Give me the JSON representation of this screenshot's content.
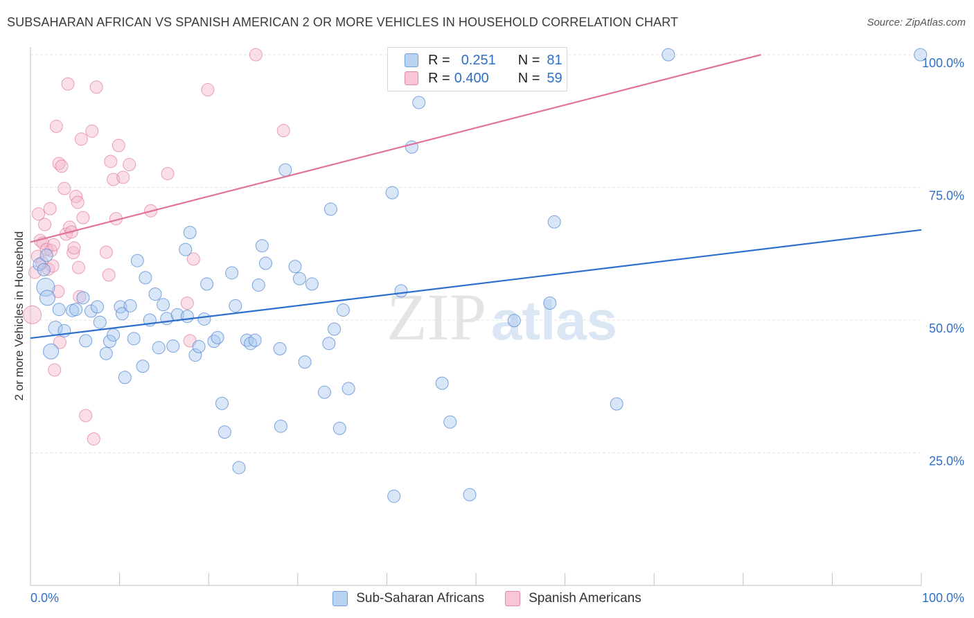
{
  "title": "SUBSAHARAN AFRICAN VS SPANISH AMERICAN 2 OR MORE VEHICLES IN HOUSEHOLD CORRELATION CHART",
  "source": "Source: ZipAtlas.com",
  "watermark": {
    "zip": "ZIP",
    "atlas": "atlas"
  },
  "legend": {
    "rows": [
      {
        "r_label": "R =",
        "r_value": "0.251",
        "n_label": "N =",
        "n_value": "81"
      },
      {
        "r_label": "R =",
        "r_value": "0.400",
        "n_label": "N =",
        "n_value": "59"
      }
    ]
  },
  "bottom_legend": [
    "Sub-Saharan Africans",
    "Spanish Americans"
  ],
  "colors": {
    "blue_fill": "#a9c8ef",
    "blue_stroke": "#5b8fd6",
    "blue_line": "#2e6fcc",
    "pink_fill": "#f5b8cb",
    "pink_stroke": "#e07a9a",
    "pink_line": "#e0729a",
    "grid": "#e3e3e3",
    "tick_text": "#2f6fc4"
  },
  "chart_data": {
    "type": "scatter",
    "xlabel": "",
    "ylabel": "2 or more Vehicles in Household",
    "xlim": [
      0,
      100
    ],
    "ylim": [
      0,
      105
    ],
    "x_ticks": [
      "0.0%",
      "100.0%"
    ],
    "y_ticks": [
      {
        "value": 25,
        "label": "25.0%"
      },
      {
        "value": 50,
        "label": "50.0%"
      },
      {
        "value": 75,
        "label": "75.0%"
      },
      {
        "value": 100,
        "label": "100.0%"
      }
    ],
    "series": [
      {
        "name": "Sub-Saharan Africans",
        "R": 0.251,
        "N": 81,
        "trend": [
          [
            0,
            46.6
          ],
          [
            100,
            67.0
          ]
        ],
        "points": [
          [
            1.0,
            60.5,
            9
          ],
          [
            1.5,
            59.5,
            9
          ],
          [
            1.7,
            56.2,
            13
          ],
          [
            1.8,
            62.2,
            9
          ],
          [
            1.9,
            54.2,
            11
          ],
          [
            2.3,
            44.1,
            11
          ],
          [
            2.8,
            48.5,
            10
          ],
          [
            3.2,
            52.0,
            9
          ],
          [
            3.8,
            48.0,
            9
          ],
          [
            4.7,
            51.8,
            9
          ],
          [
            5.1,
            52.0,
            9
          ],
          [
            5.9,
            54.2,
            9
          ],
          [
            6.2,
            46.1,
            9
          ],
          [
            6.8,
            51.7,
            9
          ],
          [
            7.5,
            52.5,
            9
          ],
          [
            7.8,
            49.6,
            9
          ],
          [
            8.5,
            43.7,
            9
          ],
          [
            8.9,
            46.0,
            9
          ],
          [
            9.3,
            47.2,
            9
          ],
          [
            10.1,
            52.5,
            9
          ],
          [
            10.3,
            51.2,
            9
          ],
          [
            10.6,
            39.2,
            9
          ],
          [
            11.2,
            52.7,
            9
          ],
          [
            11.6,
            46.5,
            9
          ],
          [
            12.0,
            61.2,
            9
          ],
          [
            12.6,
            41.3,
            9
          ],
          [
            12.9,
            58.0,
            9
          ],
          [
            13.4,
            50.0,
            9
          ],
          [
            14.0,
            54.9,
            9
          ],
          [
            14.4,
            44.8,
            9
          ],
          [
            14.9,
            52.9,
            9
          ],
          [
            15.3,
            50.3,
            9
          ],
          [
            16.0,
            45.1,
            9
          ],
          [
            16.5,
            51.0,
            9
          ],
          [
            17.4,
            63.3,
            9
          ],
          [
            17.6,
            50.7,
            9
          ],
          [
            17.9,
            66.5,
            9
          ],
          [
            18.5,
            43.4,
            9
          ],
          [
            18.9,
            45.0,
            9
          ],
          [
            19.5,
            50.2,
            9
          ],
          [
            19.8,
            56.8,
            9
          ],
          [
            20.6,
            46.0,
            9
          ],
          [
            21.0,
            46.7,
            9
          ],
          [
            21.5,
            34.3,
            9
          ],
          [
            21.8,
            28.9,
            9
          ],
          [
            22.6,
            58.9,
            9
          ],
          [
            23.0,
            52.7,
            9
          ],
          [
            23.4,
            22.2,
            9
          ],
          [
            24.3,
            46.2,
            9
          ],
          [
            24.7,
            45.6,
            9
          ],
          [
            25.2,
            46.2,
            9
          ],
          [
            25.6,
            56.6,
            9
          ],
          [
            26.0,
            64.0,
            9
          ],
          [
            26.4,
            60.7,
            9
          ],
          [
            28.0,
            44.6,
            9
          ],
          [
            28.1,
            30.0,
            9
          ],
          [
            28.6,
            78.3,
            9
          ],
          [
            29.7,
            60.1,
            9
          ],
          [
            30.2,
            57.8,
            9
          ],
          [
            30.8,
            42.1,
            9
          ],
          [
            31.6,
            56.8,
            9
          ],
          [
            33.0,
            36.4,
            9
          ],
          [
            33.5,
            45.6,
            9
          ],
          [
            33.7,
            70.9,
            9
          ],
          [
            34.1,
            48.3,
            9
          ],
          [
            34.7,
            29.6,
            9
          ],
          [
            35.1,
            51.9,
            9
          ],
          [
            35.7,
            37.1,
            9
          ],
          [
            40.6,
            74.0,
            9
          ],
          [
            40.8,
            16.8,
            9
          ],
          [
            41.6,
            55.5,
            9
          ],
          [
            42.8,
            82.6,
            9
          ],
          [
            43.6,
            91.0,
            9
          ],
          [
            46.2,
            38.1,
            9
          ],
          [
            47.1,
            30.8,
            9
          ],
          [
            49.3,
            17.1,
            9
          ],
          [
            54.3,
            49.9,
            9
          ],
          [
            58.3,
            53.2,
            9
          ],
          [
            58.8,
            68.5,
            9
          ],
          [
            65.8,
            34.2,
            9
          ],
          [
            71.6,
            100.0,
            9
          ],
          [
            99.9,
            100.0,
            9
          ]
        ]
      },
      {
        "name": "Spanish Americans",
        "R": 0.4,
        "N": 59,
        "trend": [
          [
            0,
            64.7
          ],
          [
            82,
            100.0
          ]
        ],
        "points": [
          [
            0.2,
            51.0,
            13
          ],
          [
            0.5,
            59.0,
            9
          ],
          [
            0.8,
            62.0,
            9
          ],
          [
            0.9,
            70.0,
            9
          ],
          [
            1.1,
            65.0,
            9
          ],
          [
            1.3,
            60.8,
            9
          ],
          [
            1.4,
            64.5,
            9
          ],
          [
            1.6,
            68.0,
            9
          ],
          [
            1.8,
            63.3,
            9
          ],
          [
            2.0,
            59.6,
            9
          ],
          [
            2.2,
            71.0,
            9
          ],
          [
            2.3,
            63.1,
            9
          ],
          [
            2.5,
            60.2,
            9
          ],
          [
            2.6,
            64.2,
            9
          ],
          [
            2.7,
            40.6,
            9
          ],
          [
            2.9,
            86.5,
            9
          ],
          [
            3.1,
            55.4,
            9
          ],
          [
            3.2,
            79.5,
            9
          ],
          [
            3.3,
            45.8,
            9
          ],
          [
            3.5,
            79.0,
            9
          ],
          [
            3.8,
            74.8,
            9
          ],
          [
            4.0,
            66.2,
            9
          ],
          [
            4.2,
            94.5,
            9
          ],
          [
            4.4,
            67.5,
            9
          ],
          [
            4.6,
            66.6,
            9
          ],
          [
            4.8,
            62.7,
            9
          ],
          [
            4.9,
            63.6,
            9
          ],
          [
            5.1,
            73.3,
            9
          ],
          [
            5.3,
            72.2,
            9
          ],
          [
            5.4,
            59.9,
            9
          ],
          [
            5.5,
            54.4,
            9
          ],
          [
            5.7,
            84.1,
            9
          ],
          [
            5.9,
            69.3,
            9
          ],
          [
            6.2,
            32.0,
            9
          ],
          [
            6.9,
            85.6,
            9
          ],
          [
            7.1,
            27.6,
            9
          ],
          [
            7.4,
            93.9,
            9
          ],
          [
            8.5,
            62.8,
            9
          ],
          [
            8.8,
            58.5,
            9
          ],
          [
            9.0,
            79.9,
            9
          ],
          [
            9.3,
            76.5,
            9
          ],
          [
            9.6,
            69.1,
            9
          ],
          [
            9.9,
            82.9,
            9
          ],
          [
            10.4,
            76.9,
            9
          ],
          [
            11.1,
            79.3,
            9
          ],
          [
            13.5,
            70.6,
            9
          ],
          [
            15.4,
            77.6,
            9
          ],
          [
            17.6,
            53.2,
            9
          ],
          [
            17.9,
            46.1,
            9
          ],
          [
            18.3,
            61.5,
            9
          ],
          [
            19.9,
            93.4,
            9
          ],
          [
            25.3,
            100.0,
            9
          ],
          [
            28.4,
            85.7,
            9
          ]
        ]
      }
    ]
  }
}
